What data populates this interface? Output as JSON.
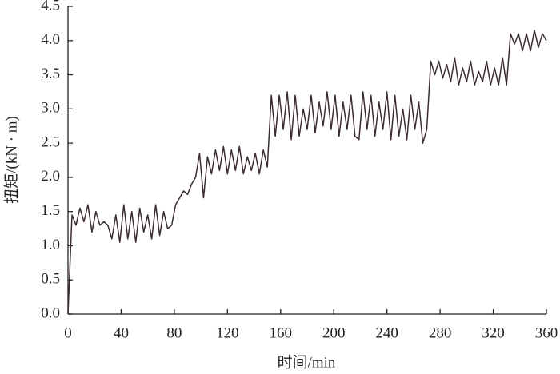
{
  "chart_data": {
    "type": "line",
    "x_label": "时间/min",
    "y_label": "扭矩/(kN · m)",
    "xlim": [
      0,
      360
    ],
    "xticks": [
      0,
      40,
      80,
      120,
      160,
      200,
      240,
      280,
      320,
      360
    ],
    "ylim": [
      0,
      4.5
    ],
    "yticks": [
      {
        "value": 0,
        "label": "0.0"
      },
      0.5,
      {
        "value": 1,
        "label": "1.0"
      },
      1.5,
      {
        "value": 2,
        "label": "2.0"
      },
      2.5,
      {
        "value": 3,
        "label": "3.0"
      },
      3.5,
      {
        "value": 4,
        "label": "4.0"
      },
      4.5
    ],
    "x": [
      0,
      3,
      6,
      9,
      12,
      15,
      18,
      21,
      24,
      27,
      30,
      33,
      36,
      39,
      42,
      45,
      48,
      51,
      54,
      57,
      60,
      63,
      66,
      69,
      72,
      75,
      78,
      81,
      84,
      87,
      90,
      93,
      96,
      99,
      102,
      105,
      108,
      111,
      114,
      117,
      120,
      123,
      126,
      129,
      132,
      135,
      138,
      141,
      144,
      147,
      150,
      153,
      156,
      159,
      162,
      165,
      168,
      171,
      174,
      177,
      180,
      183,
      186,
      189,
      192,
      195,
      198,
      201,
      204,
      207,
      210,
      213,
      216,
      219,
      222,
      225,
      228,
      231,
      234,
      237,
      240,
      243,
      246,
      249,
      252,
      255,
      258,
      261,
      264,
      267,
      270,
      273,
      276,
      279,
      282,
      285,
      288,
      291,
      294,
      297,
      300,
      303,
      306,
      309,
      312,
      315,
      318,
      321,
      324,
      327,
      330,
      333,
      336,
      339,
      342,
      345,
      348,
      351,
      354,
      357,
      360
    ],
    "series": [
      {
        "color": "#3b2d2d",
        "values": [
          0.0,
          1.45,
          1.3,
          1.55,
          1.35,
          1.6,
          1.2,
          1.5,
          1.3,
          1.35,
          1.3,
          1.1,
          1.45,
          1.05,
          1.6,
          1.1,
          1.5,
          1.05,
          1.55,
          1.2,
          1.45,
          1.1,
          1.6,
          1.15,
          1.5,
          1.25,
          1.3,
          1.6,
          1.7,
          1.8,
          1.75,
          1.9,
          2.0,
          2.35,
          1.7,
          2.3,
          2.05,
          2.4,
          2.1,
          2.45,
          2.05,
          2.4,
          2.1,
          2.45,
          2.05,
          2.3,
          2.1,
          2.35,
          2.05,
          2.4,
          2.15,
          3.2,
          2.6,
          3.2,
          2.7,
          3.25,
          2.55,
          3.2,
          2.6,
          3.0,
          2.7,
          3.2,
          2.65,
          3.1,
          2.75,
          3.25,
          2.7,
          3.2,
          2.6,
          3.1,
          2.7,
          3.2,
          2.6,
          2.55,
          3.25,
          2.7,
          3.2,
          2.6,
          3.1,
          2.7,
          3.25,
          2.55,
          3.2,
          2.6,
          3.0,
          2.55,
          3.2,
          2.7,
          3.1,
          2.5,
          2.7,
          3.7,
          3.5,
          3.7,
          3.45,
          3.65,
          3.4,
          3.75,
          3.35,
          3.6,
          3.4,
          3.7,
          3.35,
          3.55,
          3.4,
          3.7,
          3.35,
          3.6,
          3.35,
          3.75,
          3.35,
          4.1,
          3.95,
          4.1,
          3.85,
          4.1,
          3.85,
          4.15,
          3.9,
          4.1,
          4.0
        ]
      }
    ]
  }
}
